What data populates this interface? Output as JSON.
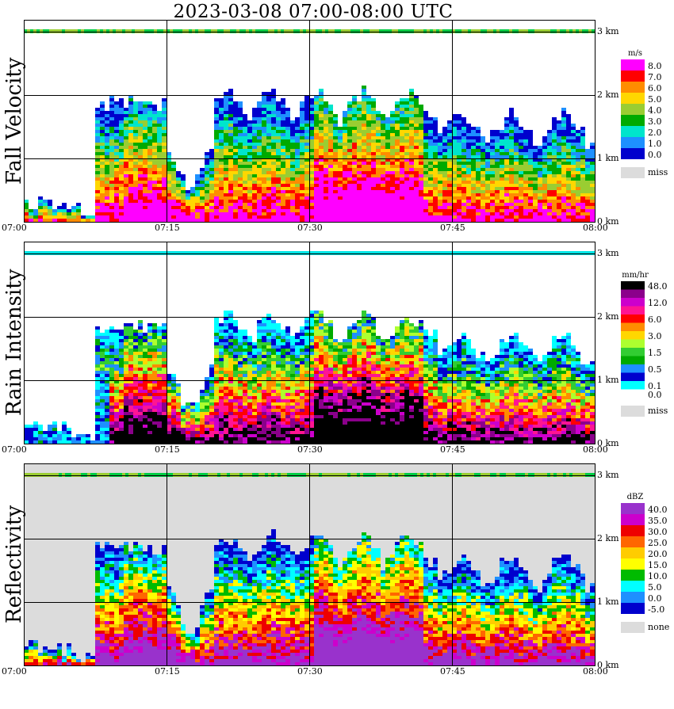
{
  "title": "2023-03-08   07:00-08:00 UTC",
  "chart_data": [
    {
      "type": "heatmap",
      "ylabel": "Fall Velocity",
      "x_ticks": [
        "07:00",
        "07:15",
        "07:30",
        "07:45",
        "08:00"
      ],
      "y_ticks": [
        "0 km",
        "1 km",
        "2 km",
        "3 km"
      ],
      "xlim": [
        "07:00",
        "08:00"
      ],
      "ylim": [
        0,
        3.2
      ],
      "grid": true,
      "legend": {
        "unit": "m/s",
        "bins": [
          {
            "label": "8.0",
            "color": "#ff00ff"
          },
          {
            "label": "7.0",
            "color": "#ff0000"
          },
          {
            "label": "6.0",
            "color": "#ff8c00"
          },
          {
            "label": "5.0",
            "color": "#ffd700"
          },
          {
            "label": "4.0",
            "color": "#9acd32"
          },
          {
            "label": "3.0",
            "color": "#00aa00"
          },
          {
            "label": "2.0",
            "color": "#00e5cc"
          },
          {
            "label": "1.0",
            "color": "#1e90ff"
          },
          {
            "label": "0.0",
            "color": "#0000cd"
          }
        ],
        "missing": {
          "label": "miss",
          "color": "#dcdcdc"
        }
      }
    },
    {
      "type": "heatmap",
      "ylabel": "Rain Intensity",
      "x_ticks": [
        "07:00",
        "07:15",
        "07:30",
        "07:45",
        "08:00"
      ],
      "y_ticks": [
        "0 km",
        "1 km",
        "2 km",
        "3 km"
      ],
      "xlim": [
        "07:00",
        "08:00"
      ],
      "ylim": [
        0,
        3.2
      ],
      "grid": true,
      "legend": {
        "unit": "mm/hr",
        "bins": [
          {
            "label": "48.0",
            "color": "#000000"
          },
          {
            "label": "",
            "color": "#8b008b"
          },
          {
            "label": "12.0",
            "color": "#cc00cc"
          },
          {
            "label": "",
            "color": "#ff1493"
          },
          {
            "label": "6.0",
            "color": "#ff0000"
          },
          {
            "label": "",
            "color": "#ff8c00"
          },
          {
            "label": "3.0",
            "color": "#ffd700"
          },
          {
            "label": "",
            "color": "#adff2f"
          },
          {
            "label": "1.5",
            "color": "#32cd32"
          },
          {
            "label": "",
            "color": "#00aa00"
          },
          {
            "label": "0.5",
            "color": "#1e90ff"
          },
          {
            "label": "",
            "color": "#0000cd"
          },
          {
            "label": "0.1",
            "color": "#00ffff"
          },
          {
            "label": "0.0",
            "color": "#ffffff"
          }
        ],
        "missing": {
          "label": "miss",
          "color": "#dcdcdc"
        }
      }
    },
    {
      "type": "heatmap",
      "ylabel": "Reflectivity",
      "x_ticks": [
        "07:00",
        "07:15",
        "07:30",
        "07:45",
        "08:00"
      ],
      "y_ticks": [
        "0 km",
        "1 km",
        "2 km",
        "3 km"
      ],
      "xlim": [
        "07:00",
        "08:00"
      ],
      "ylim": [
        0,
        3.2
      ],
      "grid": true,
      "legend": {
        "unit": "dBZ",
        "bins": [
          {
            "label": "40.0",
            "color": "#9932cc"
          },
          {
            "label": "35.0",
            "color": "#cc00cc"
          },
          {
            "label": "30.0",
            "color": "#ee0000"
          },
          {
            "label": "25.0",
            "color": "#ff6600"
          },
          {
            "label": "20.0",
            "color": "#ffcc00"
          },
          {
            "label": "15.0",
            "color": "#ffff00"
          },
          {
            "label": "10.0",
            "color": "#00bb00"
          },
          {
            "label": "5.0",
            "color": "#00ffff"
          },
          {
            "label": "0.0",
            "color": "#1e90ff"
          },
          {
            "label": "-5.0",
            "color": "#0000cd"
          }
        ],
        "missing": {
          "label": "none",
          "color": "#dcdcdc"
        }
      }
    }
  ]
}
